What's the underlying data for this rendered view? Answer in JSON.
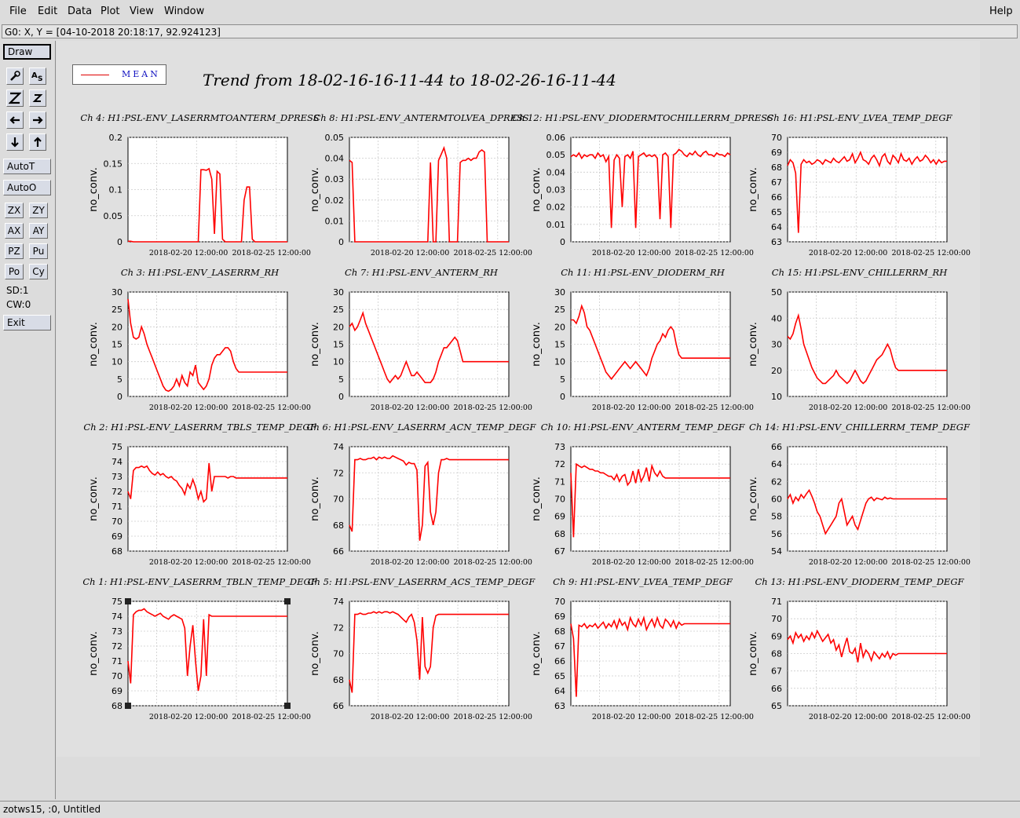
{
  "menu": {
    "file": "File",
    "edit": "Edit",
    "data": "Data",
    "plot": "Plot",
    "view": "View",
    "window": "Window",
    "help": "Help"
  },
  "coord_readout": "G0: X, Y = [04-10-2018 20:18:17, 92.924123]",
  "toolbar": {
    "draw": "Draw",
    "autot": "AutoT",
    "autoo": "AutoO",
    "zx": "ZX",
    "zy": "ZY",
    "ax": "AX",
    "ay": "AY",
    "pz": "PZ",
    "pu": "Pu",
    "po": "Po",
    "cy": "Cy",
    "sd": "SD:1",
    "cw": "CW:0",
    "exit": "Exit",
    "icons": [
      "zoom-tool-icon",
      "text-tool-icon",
      "zoom-in-icon",
      "zoom-out-icon",
      "pan-left-icon",
      "pan-right-icon",
      "pan-down-icon",
      "pan-up-icon"
    ]
  },
  "legend": {
    "label": "MEAN",
    "color": "#e00000"
  },
  "main_title": "Trend from 18-02-16-16-11-44 to 18-02-26-16-11-44",
  "status": "zotws15, :0, Untitled",
  "colors": {
    "trace": "#ff0000",
    "grid": "#cccccc",
    "title_blue": "#1010c0"
  },
  "chart_data": [
    {
      "type": "line",
      "title": "Ch 4: H1:PSL-ENV_LASERRMTOANTERM_DPRESS",
      "ylabel": "no_conv.",
      "yticks": [
        "0",
        "0.05",
        "0.1",
        "0.15",
        "0.2"
      ],
      "ylim": [
        0,
        0.2
      ],
      "xticks": [
        "2018-02-20 12:00:00",
        "2018-02-25 12:00:00"
      ],
      "y": [
        0.001,
        0.001,
        0,
        0,
        0,
        0,
        0,
        0,
        0,
        0,
        0,
        0,
        0,
        0,
        0,
        0,
        0,
        0,
        0,
        0,
        0,
        0,
        0,
        0,
        0,
        0,
        0,
        0.138,
        0.138,
        0.137,
        0.14,
        0.12,
        0.015,
        0.135,
        0.13,
        0.005,
        0,
        0,
        0,
        0,
        0,
        0,
        0,
        0.08,
        0.105,
        0.105,
        0.005,
        0,
        0,
        0,
        0,
        0,
        0,
        0,
        0,
        0,
        0,
        0,
        0,
        0
      ]
    },
    {
      "type": "line",
      "title": "Ch 8: H1:PSL-ENV_ANTERMTOLVEA_DPRESS",
      "ylabel": "no_conv.",
      "yticks": [
        "0",
        "0.01",
        "0.02",
        "0.03",
        "0.04",
        "0.05"
      ],
      "ylim": [
        0,
        0.05
      ],
      "xticks": [
        "2018-02-20 12:00:00",
        "2018-02-25 12:00:00"
      ],
      "y": [
        0.039,
        0.038,
        0,
        0,
        0,
        0,
        0,
        0,
        0,
        0,
        0,
        0,
        0,
        0,
        0,
        0,
        0,
        0,
        0,
        0,
        0,
        0,
        0,
        0,
        0,
        0,
        0,
        0,
        0,
        0,
        0.038,
        0,
        0,
        0.039,
        0.042,
        0.045,
        0.04,
        0,
        0,
        0,
        0,
        0.038,
        0.039,
        0.039,
        0.04,
        0.039,
        0.04,
        0.04,
        0.043,
        0.044,
        0.043,
        0,
        0,
        0,
        0,
        0,
        0,
        0,
        0,
        0
      ]
    },
    {
      "type": "line",
      "title": "Ch 12: H1:PSL-ENV_DIODERMTOCHILLERRM_DPRESS",
      "ylabel": "no_conv.",
      "yticks": [
        "0",
        "0.01",
        "0.02",
        "0.03",
        "0.04",
        "0.05",
        "0.06"
      ],
      "ylim": [
        0,
        0.06
      ],
      "xticks": [
        "2018-02-20 12:00:00",
        "2018-02-25 12:00:00"
      ],
      "y": [
        0.049,
        0.05,
        0.049,
        0.051,
        0.048,
        0.05,
        0.049,
        0.05,
        0.05,
        0.048,
        0.051,
        0.049,
        0.05,
        0.046,
        0.049,
        0.008,
        0.047,
        0.05,
        0.048,
        0.02,
        0.049,
        0.05,
        0.048,
        0.052,
        0.008,
        0.049,
        0.05,
        0.051,
        0.049,
        0.05,
        0.049,
        0.05,
        0.048,
        0.013,
        0.05,
        0.051,
        0.049,
        0.008,
        0.05,
        0.051,
        0.053,
        0.052,
        0.05,
        0.049,
        0.051,
        0.05,
        0.052,
        0.05,
        0.049,
        0.051,
        0.052,
        0.05,
        0.05,
        0.049,
        0.051,
        0.05,
        0.05,
        0.049,
        0.051,
        0.05
      ]
    },
    {
      "type": "line",
      "title": "Ch 16: H1:PSL-ENV_LVEA_TEMP_DEGF",
      "ylabel": "no_conv.",
      "yticks": [
        "63",
        "64",
        "65",
        "66",
        "67",
        "68",
        "69",
        "70"
      ],
      "ylim": [
        63,
        70
      ],
      "xticks": [
        "2018-02-20 12:00:00",
        "2018-02-25 12:00:00"
      ],
      "y": [
        68.1,
        68.5,
        68.3,
        67.6,
        63.6,
        68.2,
        68.5,
        68.3,
        68.4,
        68.2,
        68.3,
        68.5,
        68.4,
        68.2,
        68.5,
        68.4,
        68.3,
        68.6,
        68.4,
        68.3,
        68.5,
        68.7,
        68.4,
        68.5,
        68.9,
        68.3,
        68.6,
        69,
        68.5,
        68.4,
        68.2,
        68.6,
        68.8,
        68.5,
        68.1,
        68.7,
        68.9,
        68.4,
        68.2,
        68.8,
        68.6,
        68.3,
        68.9,
        68.5,
        68.4,
        68.6,
        68.2,
        68.5,
        68.7,
        68.4,
        68.5,
        68.8,
        68.6,
        68.3,
        68.5,
        68.2,
        68.5,
        68.3,
        68.4,
        68.4
      ]
    },
    {
      "type": "line",
      "title": "Ch 3: H1:PSL-ENV_LASERRM_RH",
      "ylabel": "no_conv.",
      "yticks": [
        "0",
        "5",
        "10",
        "15",
        "20",
        "25",
        "30"
      ],
      "ylim": [
        0,
        30
      ],
      "xticks": [
        "2018-02-20 12:00:00",
        "2018-02-25 12:00:00"
      ],
      "y": [
        28,
        21,
        17,
        16.5,
        17,
        20,
        18,
        15,
        13,
        11,
        9,
        7,
        5,
        3,
        1.8,
        1.5,
        2,
        3,
        5,
        3,
        6,
        4,
        3,
        7,
        6,
        9,
        4,
        3,
        2,
        3,
        5,
        9,
        11,
        12,
        12,
        13,
        14,
        14,
        13,
        10,
        8,
        7,
        7,
        7,
        7,
        7,
        7,
        7,
        7,
        7,
        7,
        7,
        7,
        7,
        7,
        7,
        7,
        7,
        7,
        7
      ]
    },
    {
      "type": "line",
      "title": "Ch 7: H1:PSL-ENV_ANTERM_RH",
      "ylabel": "no_conv.",
      "yticks": [
        "0",
        "5",
        "10",
        "15",
        "20",
        "25",
        "30"
      ],
      "ylim": [
        0,
        30
      ],
      "xticks": [
        "2018-02-20 12:00:00",
        "2018-02-25 12:00:00"
      ],
      "y": [
        20,
        21,
        19,
        20,
        22,
        24,
        21,
        19,
        17,
        15,
        13,
        11,
        9,
        7,
        5,
        4,
        5,
        6,
        5,
        6,
        8,
        10,
        8,
        6,
        6,
        7,
        6,
        5,
        4,
        4,
        4,
        5,
        7,
        10,
        12,
        14,
        14,
        15,
        16,
        17,
        16,
        13,
        10,
        10,
        10,
        10,
        10,
        10,
        10,
        10,
        10,
        10,
        10,
        10,
        10,
        10,
        10,
        10,
        10,
        10
      ]
    },
    {
      "type": "line",
      "title": "Ch 11: H1:PSL-ENV_DIODERM_RH",
      "ylabel": "no_conv.",
      "yticks": [
        "0",
        "5",
        "10",
        "15",
        "20",
        "25",
        "30"
      ],
      "ylim": [
        0,
        30
      ],
      "xticks": [
        "2018-02-20 12:00:00",
        "2018-02-25 12:00:00"
      ],
      "y": [
        22,
        22,
        21,
        23,
        26,
        24,
        20,
        19,
        17,
        15,
        13,
        11,
        9,
        7,
        6,
        5,
        6,
        7,
        8,
        9,
        10,
        9,
        8,
        9,
        10,
        9,
        8,
        7,
        6,
        8,
        11,
        13,
        15,
        16,
        18,
        17,
        19,
        20,
        19,
        15,
        12,
        11,
        11,
        11,
        11,
        11,
        11,
        11,
        11,
        11,
        11,
        11,
        11,
        11,
        11,
        11,
        11,
        11,
        11,
        11
      ]
    },
    {
      "type": "line",
      "title": "Ch 15: H1:PSL-ENV_CHILLERRM_RH",
      "ylabel": "no_conv.",
      "yticks": [
        "10",
        "20",
        "30",
        "40",
        "50"
      ],
      "ylim": [
        10,
        50
      ],
      "xticks": [
        "2018-02-20 12:00:00",
        "2018-02-25 12:00:00"
      ],
      "y": [
        33,
        32,
        34,
        38,
        41,
        36,
        30,
        27,
        24,
        21,
        19,
        17,
        16,
        15,
        15,
        16,
        17,
        18,
        20,
        18,
        17,
        16,
        15,
        16,
        18,
        20,
        18,
        16,
        15,
        16,
        18,
        20,
        22,
        24,
        25,
        26,
        28,
        30,
        28,
        24,
        21,
        20,
        20,
        20,
        20,
        20,
        20,
        20,
        20,
        20,
        20,
        20,
        20,
        20,
        20,
        20,
        20,
        20,
        20,
        20
      ]
    },
    {
      "type": "line",
      "title": "Ch 2: H1:PSL-ENV_LASERRM_TBLS_TEMP_DEGF",
      "ylabel": "no_conv.",
      "yticks": [
        "68",
        "69",
        "70",
        "71",
        "72",
        "73",
        "74",
        "75"
      ],
      "ylim": [
        68,
        75
      ],
      "xticks": [
        "2018-02-20 12:00:00",
        "2018-02-25 12:00:00"
      ],
      "y": [
        72,
        71.5,
        73.4,
        73.6,
        73.6,
        73.7,
        73.6,
        73.7,
        73.4,
        73.2,
        73.1,
        73.3,
        73.1,
        73.2,
        73,
        72.9,
        73,
        72.8,
        72.7,
        72.4,
        72.2,
        71.8,
        72.5,
        72.2,
        72.8,
        72.3,
        71.5,
        72,
        71.3,
        71.5,
        73.9,
        72,
        73,
        73,
        73,
        73,
        73,
        72.9,
        73,
        73,
        72.9,
        72.9,
        72.9,
        72.9,
        72.9,
        72.9,
        72.9,
        72.9,
        72.9,
        72.9,
        72.9,
        72.9,
        72.9,
        72.9,
        72.9,
        72.9,
        72.9,
        72.9,
        72.9,
        72.9
      ]
    },
    {
      "type": "line",
      "title": "Ch 6: H1:PSL-ENV_LASERRM_ACN_TEMP_DEGF",
      "ylabel": "no_conv.",
      "yticks": [
        "66",
        "68",
        "70",
        "72",
        "74"
      ],
      "ylim": [
        66,
        74
      ],
      "xticks": [
        "2018-02-20 12:00:00",
        "2018-02-25 12:00:00"
      ],
      "y": [
        68,
        67.5,
        73,
        73,
        73.1,
        73,
        73,
        73.1,
        73.1,
        73.2,
        73,
        73.2,
        73.1,
        73.2,
        73.1,
        73.1,
        73.3,
        73.2,
        73.1,
        73,
        72.9,
        72.6,
        72.8,
        72.7,
        72.7,
        72.2,
        66.8,
        68,
        72.5,
        72.8,
        69,
        68,
        69,
        72,
        73,
        73,
        73.1,
        73,
        73,
        73,
        73,
        73,
        73,
        73,
        73,
        73,
        73,
        73,
        73,
        73,
        73,
        73,
        73,
        73,
        73,
        73,
        73,
        73,
        73,
        73
      ]
    },
    {
      "type": "line",
      "title": "Ch 10: H1:PSL-ENV_ANTERM_TEMP_DEGF",
      "ylabel": "no_conv.",
      "yticks": [
        "67",
        "68",
        "69",
        "70",
        "71",
        "72",
        "73"
      ],
      "ylim": [
        67,
        73
      ],
      "xticks": [
        "2018-02-20 12:00:00",
        "2018-02-25 12:00:00"
      ],
      "y": [
        71.5,
        67.8,
        72,
        71.9,
        71.8,
        71.9,
        71.8,
        71.7,
        71.7,
        71.6,
        71.6,
        71.5,
        71.5,
        71.4,
        71.3,
        71.3,
        71.1,
        71.4,
        71,
        71.3,
        71.4,
        70.8,
        71,
        71.6,
        70.9,
        71.7,
        71,
        71.3,
        71.8,
        71,
        71.9,
        71.5,
        71.3,
        71.6,
        71.3,
        71.2,
        71.2,
        71.2,
        71.2,
        71.2,
        71.2,
        71.2,
        71.2,
        71.2,
        71.2,
        71.2,
        71.2,
        71.2,
        71.2,
        71.2,
        71.2,
        71.2,
        71.2,
        71.2,
        71.2,
        71.2,
        71.2,
        71.2,
        71.2,
        71.2
      ]
    },
    {
      "type": "line",
      "title": "Ch 14: H1:PSL-ENV_CHILLERRM_TEMP_DEGF",
      "ylabel": "no_conv.",
      "yticks": [
        "54",
        "56",
        "58",
        "60",
        "62",
        "64",
        "66"
      ],
      "ylim": [
        54,
        66
      ],
      "xticks": [
        "2018-02-20 12:00:00",
        "2018-02-25 12:00:00"
      ],
      "y": [
        60,
        60.5,
        59.5,
        60.2,
        59.8,
        60.5,
        60.1,
        60.6,
        61,
        60.3,
        59.5,
        58.5,
        58,
        57,
        56,
        56.5,
        57,
        57.5,
        58,
        59.5,
        60,
        58.5,
        57,
        57.5,
        58,
        57,
        56.5,
        57.5,
        58.5,
        59.5,
        60,
        60.2,
        59.8,
        60.1,
        60,
        59.9,
        60.2,
        60,
        60.1,
        60,
        60,
        60,
        60,
        60,
        60,
        60,
        60,
        60,
        60,
        60,
        60,
        60,
        60,
        60,
        60,
        60,
        60,
        60,
        60,
        60
      ]
    },
    {
      "type": "line",
      "title": "Ch 1: H1:PSL-ENV_LASERRM_TBLN_TEMP_DEGF",
      "ylabel": "no_conv.",
      "yticks": [
        "68",
        "69",
        "70",
        "71",
        "72",
        "73",
        "74",
        "75"
      ],
      "ylim": [
        68,
        75
      ],
      "xticks": [
        "2018-02-20 12:00:00",
        "2018-02-25 12:00:00"
      ],
      "y": [
        71,
        69.5,
        74.1,
        74.3,
        74.4,
        74.4,
        74.5,
        74.3,
        74.2,
        74.1,
        74,
        74.1,
        74.2,
        74,
        73.9,
        73.8,
        74,
        74.1,
        74,
        73.9,
        73.8,
        73.2,
        70,
        72,
        73.4,
        71,
        69,
        70,
        73.8,
        70,
        74.1,
        74,
        74,
        74,
        74,
        74,
        74,
        74,
        74,
        74,
        74,
        74,
        74,
        74,
        74,
        74,
        74,
        74,
        74,
        74,
        74,
        74,
        74,
        74,
        74,
        74,
        74,
        74,
        74,
        74
      ]
    },
    {
      "type": "line",
      "title": "Ch 5: H1:PSL-ENV_LASERRM_ACS_TEMP_DEGF",
      "ylabel": "no_conv.",
      "yticks": [
        "66",
        "68",
        "70",
        "72",
        "74"
      ],
      "ylim": [
        66,
        74
      ],
      "xticks": [
        "2018-02-20 12:00:00",
        "2018-02-25 12:00:00"
      ],
      "y": [
        68,
        67,
        73,
        73,
        73.1,
        73,
        73,
        73.1,
        73.1,
        73.2,
        73.1,
        73.2,
        73.1,
        73.2,
        73.2,
        73.1,
        73.2,
        73.1,
        73,
        72.8,
        72.6,
        72.4,
        72.8,
        73,
        72.4,
        71,
        68,
        72.8,
        69,
        68.5,
        69,
        72,
        72.9,
        73,
        73,
        73,
        73,
        73,
        73,
        73,
        73,
        73,
        73,
        73,
        73,
        73,
        73,
        73,
        73,
        73,
        73,
        73,
        73,
        73,
        73,
        73,
        73,
        73,
        73,
        73
      ]
    },
    {
      "type": "line",
      "title": "Ch 9: H1:PSL-ENV_LVEA_TEMP_DEGF",
      "ylabel": "no_conv.",
      "yticks": [
        "63",
        "64",
        "65",
        "66",
        "67",
        "68",
        "69",
        "70"
      ],
      "ylim": [
        63,
        70
      ],
      "xticks": [
        "2018-02-20 12:00:00",
        "2018-02-25 12:00:00"
      ],
      "y": [
        68.5,
        67.5,
        63.6,
        68.4,
        68.3,
        68.5,
        68.2,
        68.4,
        68.3,
        68.5,
        68.2,
        68.4,
        68.6,
        68.2,
        68.5,
        68.3,
        68.7,
        68.2,
        68.8,
        68.4,
        68.6,
        68.1,
        68.9,
        68.5,
        68.3,
        68.8,
        68.4,
        68.9,
        68.1,
        68.5,
        68.8,
        68.3,
        68.9,
        68.4,
        68.2,
        68.8,
        68.6,
        68.3,
        68.7,
        68.2,
        68.6,
        68.4,
        68.5,
        68.5,
        68.5,
        68.5,
        68.5,
        68.5,
        68.5,
        68.5,
        68.5,
        68.5,
        68.5,
        68.5,
        68.5,
        68.5,
        68.5,
        68.5,
        68.5,
        68.5
      ]
    },
    {
      "type": "line",
      "title": "Ch 13: H1:PSL-ENV_DIODERM_TEMP_DEGF",
      "ylabel": "no_conv.",
      "yticks": [
        "65",
        "66",
        "67",
        "68",
        "69",
        "70",
        "71"
      ],
      "ylim": [
        65,
        71
      ],
      "xticks": [
        "2018-02-20 12:00:00",
        "2018-02-25 12:00:00"
      ],
      "y": [
        68.8,
        69,
        68.6,
        69.2,
        68.9,
        69.1,
        68.7,
        69,
        68.8,
        69.2,
        68.9,
        69.3,
        69,
        68.7,
        68.9,
        69.1,
        68.6,
        68.8,
        68.2,
        68.5,
        67.8,
        68.4,
        68.9,
        68.1,
        68,
        68.3,
        67.5,
        68.6,
        67.8,
        68.2,
        68,
        67.6,
        68.1,
        67.9,
        67.7,
        68,
        67.8,
        68.1,
        67.7,
        68,
        67.9,
        68,
        68,
        68,
        68,
        68,
        68,
        68,
        68,
        68,
        68,
        68,
        68,
        68,
        68,
        68,
        68,
        68,
        68,
        68
      ]
    }
  ]
}
